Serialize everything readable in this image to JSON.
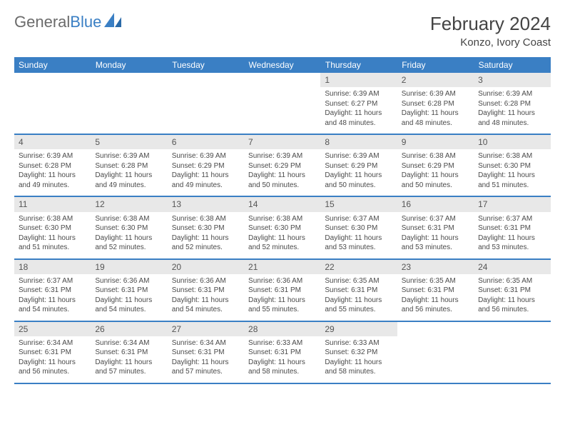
{
  "brand": {
    "part1": "General",
    "part2": "Blue"
  },
  "title": "February 2024",
  "location": "Konzo, Ivory Coast",
  "colors": {
    "header_bg": "#3a7fc4",
    "header_text": "#ffffff",
    "daynum_bg": "#e8e8e8",
    "row_border": "#3a7fc4",
    "body_text": "#4a4a4a",
    "logo_gray": "#6b6b6b",
    "logo_blue": "#3a7fc4"
  },
  "fonts": {
    "title_size": 26,
    "location_size": 15,
    "header_size": 12,
    "cell_size": 10
  },
  "day_headers": [
    "Sunday",
    "Monday",
    "Tuesday",
    "Wednesday",
    "Thursday",
    "Friday",
    "Saturday"
  ],
  "weeks": [
    [
      {
        "blank": true
      },
      {
        "blank": true
      },
      {
        "blank": true
      },
      {
        "blank": true
      },
      {
        "n": "1",
        "sr": "6:39 AM",
        "ss": "6:27 PM",
        "dl": "11 hours and 48 minutes."
      },
      {
        "n": "2",
        "sr": "6:39 AM",
        "ss": "6:28 PM",
        "dl": "11 hours and 48 minutes."
      },
      {
        "n": "3",
        "sr": "6:39 AM",
        "ss": "6:28 PM",
        "dl": "11 hours and 48 minutes."
      }
    ],
    [
      {
        "n": "4",
        "sr": "6:39 AM",
        "ss": "6:28 PM",
        "dl": "11 hours and 49 minutes."
      },
      {
        "n": "5",
        "sr": "6:39 AM",
        "ss": "6:28 PM",
        "dl": "11 hours and 49 minutes."
      },
      {
        "n": "6",
        "sr": "6:39 AM",
        "ss": "6:29 PM",
        "dl": "11 hours and 49 minutes."
      },
      {
        "n": "7",
        "sr": "6:39 AM",
        "ss": "6:29 PM",
        "dl": "11 hours and 50 minutes."
      },
      {
        "n": "8",
        "sr": "6:39 AM",
        "ss": "6:29 PM",
        "dl": "11 hours and 50 minutes."
      },
      {
        "n": "9",
        "sr": "6:38 AM",
        "ss": "6:29 PM",
        "dl": "11 hours and 50 minutes."
      },
      {
        "n": "10",
        "sr": "6:38 AM",
        "ss": "6:30 PM",
        "dl": "11 hours and 51 minutes."
      }
    ],
    [
      {
        "n": "11",
        "sr": "6:38 AM",
        "ss": "6:30 PM",
        "dl": "11 hours and 51 minutes."
      },
      {
        "n": "12",
        "sr": "6:38 AM",
        "ss": "6:30 PM",
        "dl": "11 hours and 52 minutes."
      },
      {
        "n": "13",
        "sr": "6:38 AM",
        "ss": "6:30 PM",
        "dl": "11 hours and 52 minutes."
      },
      {
        "n": "14",
        "sr": "6:38 AM",
        "ss": "6:30 PM",
        "dl": "11 hours and 52 minutes."
      },
      {
        "n": "15",
        "sr": "6:37 AM",
        "ss": "6:30 PM",
        "dl": "11 hours and 53 minutes."
      },
      {
        "n": "16",
        "sr": "6:37 AM",
        "ss": "6:31 PM",
        "dl": "11 hours and 53 minutes."
      },
      {
        "n": "17",
        "sr": "6:37 AM",
        "ss": "6:31 PM",
        "dl": "11 hours and 53 minutes."
      }
    ],
    [
      {
        "n": "18",
        "sr": "6:37 AM",
        "ss": "6:31 PM",
        "dl": "11 hours and 54 minutes."
      },
      {
        "n": "19",
        "sr": "6:36 AM",
        "ss": "6:31 PM",
        "dl": "11 hours and 54 minutes."
      },
      {
        "n": "20",
        "sr": "6:36 AM",
        "ss": "6:31 PM",
        "dl": "11 hours and 54 minutes."
      },
      {
        "n": "21",
        "sr": "6:36 AM",
        "ss": "6:31 PM",
        "dl": "11 hours and 55 minutes."
      },
      {
        "n": "22",
        "sr": "6:35 AM",
        "ss": "6:31 PM",
        "dl": "11 hours and 55 minutes."
      },
      {
        "n": "23",
        "sr": "6:35 AM",
        "ss": "6:31 PM",
        "dl": "11 hours and 56 minutes."
      },
      {
        "n": "24",
        "sr": "6:35 AM",
        "ss": "6:31 PM",
        "dl": "11 hours and 56 minutes."
      }
    ],
    [
      {
        "n": "25",
        "sr": "6:34 AM",
        "ss": "6:31 PM",
        "dl": "11 hours and 56 minutes."
      },
      {
        "n": "26",
        "sr": "6:34 AM",
        "ss": "6:31 PM",
        "dl": "11 hours and 57 minutes."
      },
      {
        "n": "27",
        "sr": "6:34 AM",
        "ss": "6:31 PM",
        "dl": "11 hours and 57 minutes."
      },
      {
        "n": "28",
        "sr": "6:33 AM",
        "ss": "6:31 PM",
        "dl": "11 hours and 58 minutes."
      },
      {
        "n": "29",
        "sr": "6:33 AM",
        "ss": "6:32 PM",
        "dl": "11 hours and 58 minutes."
      },
      {
        "blank": true
      },
      {
        "blank": true
      }
    ]
  ],
  "labels": {
    "sunrise": "Sunrise:",
    "sunset": "Sunset:",
    "daylight": "Daylight:"
  }
}
